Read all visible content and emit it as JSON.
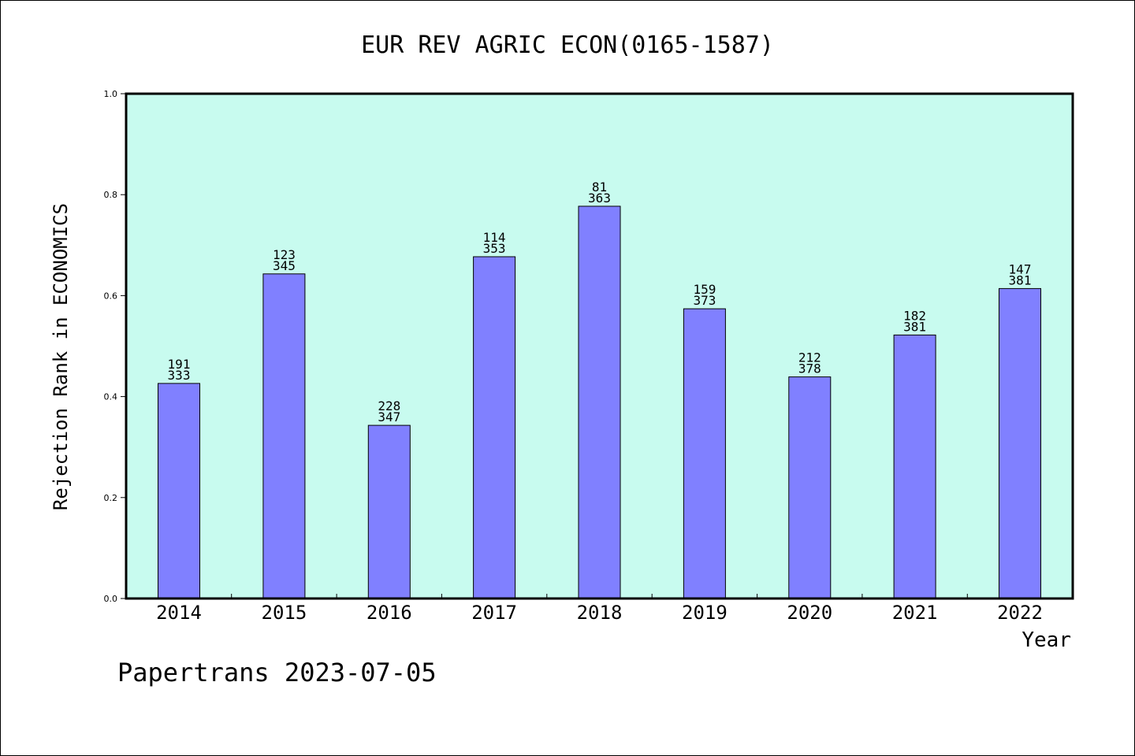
{
  "footer": {
    "text": "Papertrans 2023-07-05"
  },
  "colors": {
    "plot_background": "#c8fbef",
    "bar_fill": "#8080ff",
    "bar_stroke": "#000000",
    "axis": "#000000"
  },
  "chart_data": {
    "type": "bar",
    "title": "EUR REV AGRIC ECON(0165-1587)",
    "xlabel": "Year",
    "ylabel": "Rejection Rank in ECONOMICS",
    "ylim": [
      0,
      1.0
    ],
    "yticks": [
      "0.0",
      "0.2",
      "0.4",
      "0.6",
      "0.8",
      "1.0"
    ],
    "grid": false,
    "categories": [
      "2014",
      "2015",
      "2016",
      "2017",
      "2018",
      "2019",
      "2020",
      "2021",
      "2022"
    ],
    "values": [
      0.426,
      0.643,
      0.343,
      0.677,
      0.777,
      0.574,
      0.439,
      0.522,
      0.614
    ],
    "label_top": [
      "191",
      "123",
      "228",
      "114",
      "81",
      "159",
      "212",
      "182",
      "147"
    ],
    "label_bottom": [
      "333",
      "345",
      "347",
      "353",
      "363",
      "373",
      "378",
      "381",
      "381"
    ]
  }
}
